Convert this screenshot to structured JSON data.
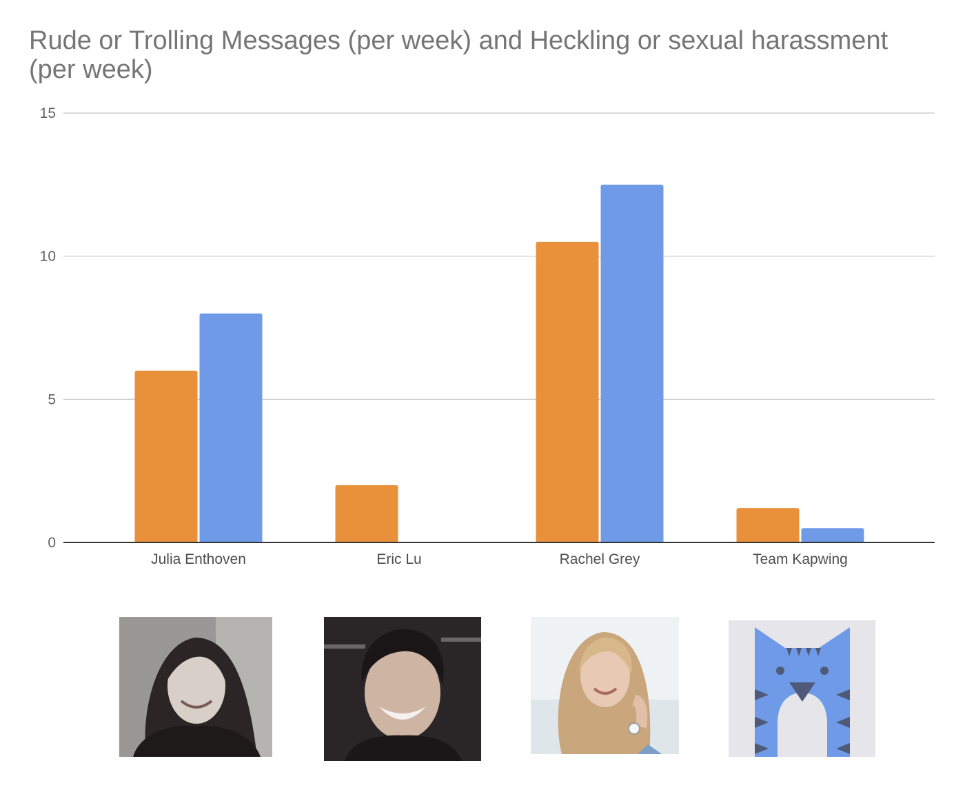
{
  "chart_data": {
    "type": "bar",
    "title": "Rude or Trolling Messages (per week) and Heckling or sexual harassment (per week)",
    "categories": [
      "Julia Enthoven",
      "Eric Lu",
      "Rachel Grey",
      "Team Kapwing"
    ],
    "series": [
      {
        "values": [
          6,
          2,
          10.5,
          1.2
        ],
        "color": "#e8913a"
      },
      {
        "values": [
          8,
          0,
          12.5,
          0.5
        ],
        "color": "#6f9ae8"
      }
    ],
    "ylim": [
      0,
      15
    ],
    "yticks": [
      0,
      5,
      10,
      15
    ],
    "xlabel": "",
    "ylabel": "",
    "grid": true,
    "legend": "none"
  },
  "photos": [
    {
      "depicts": "portrait-woman-dark-hair-icon"
    },
    {
      "depicts": "portrait-man-smiling-icon"
    },
    {
      "depicts": "portrait-woman-blonde-icon"
    },
    {
      "depicts": "kapwing-cat-logo-icon",
      "colors": {
        "body": "#6f9ae8",
        "face": "#e6e6ea",
        "stripe": "#4f5a78"
      }
    }
  ]
}
